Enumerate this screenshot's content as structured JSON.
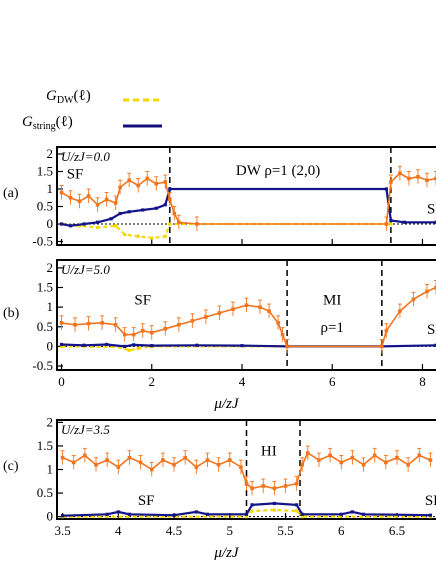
{
  "legend": {
    "dw_label": "G",
    "dw_sub": "DW",
    "dw_arg": "(ℓ)",
    "string_label": "G",
    "string_sub": "string",
    "string_arg": "(ℓ)",
    "dw_color": "#f5d800",
    "string_color": "#10107a"
  },
  "colors": {
    "orange": "#f2741e",
    "blue": "#14148a",
    "yellow": "#f5d800",
    "frame": "#000000"
  },
  "chart_data": [
    {
      "type": "line",
      "panel": "(a)",
      "param": "U/zJ=0.0",
      "xlim": [
        -0.1,
        8.3
      ],
      "ylim": [
        -0.6,
        2.2
      ],
      "xticks": [
        0,
        2,
        4,
        6,
        8
      ],
      "yticks": [
        "-0.5",
        "0",
        "0.5",
        "1",
        "1.5",
        "2"
      ],
      "yvals": [
        -0.5,
        0,
        0.5,
        1,
        1.5,
        2
      ],
      "show_xticklabels": false,
      "boundaries": [
        2.4,
        7.3
      ],
      "regions": [
        {
          "text": "SF",
          "x": 0.3,
          "y": 1.45
        },
        {
          "text": "DW  ρ=1 (2,0)",
          "x": 4.8,
          "y": 1.55
        },
        {
          "text": "SF",
          "x": 8.1,
          "y": 0.45
        }
      ],
      "series": [
        {
          "key": "orange",
          "values": [
            [
              0.0,
              0.9
            ],
            [
              0.2,
              0.75
            ],
            [
              0.4,
              0.65
            ],
            [
              0.6,
              0.8
            ],
            [
              0.8,
              0.55
            ],
            [
              1.0,
              0.7
            ],
            [
              1.2,
              0.6
            ],
            [
              1.3,
              1.05
            ],
            [
              1.5,
              1.25
            ],
            [
              1.7,
              1.1
            ],
            [
              1.9,
              1.3
            ],
            [
              2.1,
              1.15
            ],
            [
              2.3,
              1.2
            ],
            [
              2.4,
              0.7
            ],
            [
              2.5,
              0.3
            ],
            [
              2.6,
              0.05
            ],
            [
              3.0,
              0.0
            ],
            [
              7.2,
              0.0
            ],
            [
              7.3,
              1.2
            ],
            [
              7.5,
              1.45
            ],
            [
              7.7,
              1.3
            ],
            [
              7.9,
              1.35
            ],
            [
              8.1,
              1.25
            ],
            [
              8.3,
              1.3
            ]
          ]
        },
        {
          "key": "blue",
          "values": [
            [
              0.0,
              0.0
            ],
            [
              0.2,
              -0.05
            ],
            [
              0.5,
              0.0
            ],
            [
              0.8,
              0.05
            ],
            [
              1.1,
              0.15
            ],
            [
              1.3,
              0.3
            ],
            [
              1.5,
              0.35
            ],
            [
              1.8,
              0.4
            ],
            [
              2.1,
              0.45
            ],
            [
              2.3,
              0.55
            ],
            [
              2.4,
              1.0
            ],
            [
              7.2,
              1.0
            ],
            [
              7.3,
              0.1
            ],
            [
              7.6,
              0.05
            ],
            [
              8.3,
              0.05
            ]
          ]
        },
        {
          "key": "yellow",
          "values": [
            [
              0.0,
              0.0
            ],
            [
              0.4,
              -0.05
            ],
            [
              0.8,
              -0.1
            ],
            [
              1.2,
              -0.05
            ],
            [
              1.4,
              -0.3
            ],
            [
              1.7,
              -0.35
            ],
            [
              2.0,
              -0.4
            ],
            [
              2.3,
              -0.35
            ],
            [
              2.4,
              0.0
            ],
            [
              7.3,
              0.0
            ]
          ]
        }
      ]
    },
    {
      "type": "line",
      "panel": "(b)",
      "param": "U/zJ=5.0",
      "xlim": [
        -0.1,
        8.3
      ],
      "ylim": [
        -0.6,
        2.2
      ],
      "xticks": [
        0,
        2,
        4,
        6,
        8
      ],
      "xticklabels": [
        "0",
        "2",
        "4",
        "6",
        "8"
      ],
      "yticks": [
        "-0.5",
        "0",
        "0.5",
        "1",
        "1.5",
        "2"
      ],
      "yvals": [
        -0.5,
        0,
        0.5,
        1,
        1.5,
        2
      ],
      "show_xticklabels": true,
      "xlabel": "μ/zJ",
      "boundaries": [
        5.0,
        7.1
      ],
      "regions": [
        {
          "text": "SF",
          "x": 1.8,
          "y": 1.2
        },
        {
          "text": "MI",
          "x": 6.0,
          "y": 1.2
        },
        {
          "text": "ρ=1",
          "x": 6.0,
          "y": 0.5
        },
        {
          "text": "SF",
          "x": 8.1,
          "y": 0.45
        }
      ],
      "series": [
        {
          "key": "orange",
          "values": [
            [
              0.0,
              0.6
            ],
            [
              0.3,
              0.55
            ],
            [
              0.6,
              0.58
            ],
            [
              0.9,
              0.6
            ],
            [
              1.2,
              0.55
            ],
            [
              1.4,
              0.3
            ],
            [
              1.6,
              0.3
            ],
            [
              1.8,
              0.4
            ],
            [
              2.0,
              0.35
            ],
            [
              2.3,
              0.45
            ],
            [
              2.6,
              0.55
            ],
            [
              2.9,
              0.65
            ],
            [
              3.2,
              0.75
            ],
            [
              3.5,
              0.85
            ],
            [
              3.8,
              0.95
            ],
            [
              4.1,
              1.05
            ],
            [
              4.4,
              1.0
            ],
            [
              4.6,
              0.9
            ],
            [
              4.8,
              0.6
            ],
            [
              4.9,
              0.3
            ],
            [
              5.0,
              0.0
            ],
            [
              7.1,
              0.0
            ],
            [
              7.2,
              0.4
            ],
            [
              7.5,
              0.9
            ],
            [
              7.8,
              1.2
            ],
            [
              8.1,
              1.4
            ],
            [
              8.3,
              1.5
            ]
          ]
        },
        {
          "key": "blue",
          "values": [
            [
              0.0,
              0.05
            ],
            [
              0.5,
              0.03
            ],
            [
              1.0,
              0.05
            ],
            [
              1.4,
              0.0
            ],
            [
              1.6,
              0.04
            ],
            [
              2.0,
              0.02
            ],
            [
              3.0,
              0.03
            ],
            [
              4.0,
              0.02
            ],
            [
              5.0,
              0.0
            ],
            [
              7.1,
              0.0
            ],
            [
              8.3,
              0.03
            ]
          ]
        },
        {
          "key": "yellow",
          "values": [
            [
              0.0,
              0.0
            ],
            [
              1.3,
              -0.02
            ],
            [
              1.5,
              -0.1
            ],
            [
              1.7,
              -0.05
            ],
            [
              2.0,
              0.0
            ],
            [
              5.0,
              0.0
            ]
          ]
        }
      ]
    },
    {
      "type": "line",
      "panel": "(c)",
      "param": "U/zJ=3.5",
      "xlim": [
        3.45,
        6.85
      ],
      "ylim": [
        -0.05,
        2.05
      ],
      "xticks": [
        3.5,
        4,
        4.5,
        5,
        5.5,
        6,
        6.5
      ],
      "xticklabels": [
        "3.5",
        "4",
        "4.5",
        "5",
        "5.5",
        "6",
        "6.5"
      ],
      "yticks": [
        "0",
        "0.5",
        "1",
        "1.5",
        "2"
      ],
      "yvals": [
        0,
        0.5,
        1,
        1.5,
        2
      ],
      "show_xticklabels": true,
      "xlabel": "μ/zJ",
      "boundaries": [
        5.15,
        5.63
      ],
      "regions": [
        {
          "text": "HI",
          "x": 5.35,
          "y": 1.4
        },
        {
          "text": "SF",
          "x": 4.25,
          "y": 0.35
        },
        {
          "text": "SF",
          "x": 6.75,
          "y": 0.35
        }
      ],
      "series": [
        {
          "key": "orange",
          "values": [
            [
              3.5,
              1.25
            ],
            [
              3.6,
              1.15
            ],
            [
              3.7,
              1.3
            ],
            [
              3.8,
              1.1
            ],
            [
              3.9,
              1.2
            ],
            [
              4.0,
              1.05
            ],
            [
              4.1,
              1.25
            ],
            [
              4.2,
              1.15
            ],
            [
              4.3,
              1.0
            ],
            [
              4.4,
              1.2
            ],
            [
              4.5,
              1.1
            ],
            [
              4.6,
              1.25
            ],
            [
              4.7,
              1.05
            ],
            [
              4.8,
              1.2
            ],
            [
              4.9,
              1.1
            ],
            [
              5.0,
              1.2
            ],
            [
              5.1,
              1.05
            ],
            [
              5.15,
              0.7
            ],
            [
              5.2,
              0.6
            ],
            [
              5.3,
              0.65
            ],
            [
              5.4,
              0.6
            ],
            [
              5.5,
              0.65
            ],
            [
              5.6,
              0.7
            ],
            [
              5.65,
              1.1
            ],
            [
              5.7,
              1.35
            ],
            [
              5.8,
              1.2
            ],
            [
              5.9,
              1.3
            ],
            [
              6.0,
              1.15
            ],
            [
              6.1,
              1.25
            ],
            [
              6.2,
              1.1
            ],
            [
              6.3,
              1.3
            ],
            [
              6.4,
              1.15
            ],
            [
              6.5,
              1.25
            ],
            [
              6.6,
              1.1
            ],
            [
              6.7,
              1.3
            ],
            [
              6.8,
              1.2
            ]
          ]
        },
        {
          "key": "blue",
          "values": [
            [
              3.5,
              0.02
            ],
            [
              3.9,
              0.05
            ],
            [
              4.0,
              0.1
            ],
            [
              4.1,
              0.05
            ],
            [
              4.5,
              0.03
            ],
            [
              4.7,
              0.1
            ],
            [
              4.8,
              0.05
            ],
            [
              5.15,
              0.05
            ],
            [
              5.2,
              0.25
            ],
            [
              5.4,
              0.28
            ],
            [
              5.6,
              0.25
            ],
            [
              5.65,
              0.05
            ],
            [
              6.0,
              0.05
            ],
            [
              6.1,
              0.1
            ],
            [
              6.2,
              0.05
            ],
            [
              6.8,
              0.03
            ]
          ]
        },
        {
          "key": "yellow",
          "values": [
            [
              3.5,
              0.0
            ],
            [
              5.15,
              0.0
            ],
            [
              5.2,
              0.12
            ],
            [
              5.4,
              0.14
            ],
            [
              5.6,
              0.12
            ],
            [
              5.65,
              0.0
            ],
            [
              6.8,
              0.0
            ]
          ]
        }
      ]
    }
  ]
}
